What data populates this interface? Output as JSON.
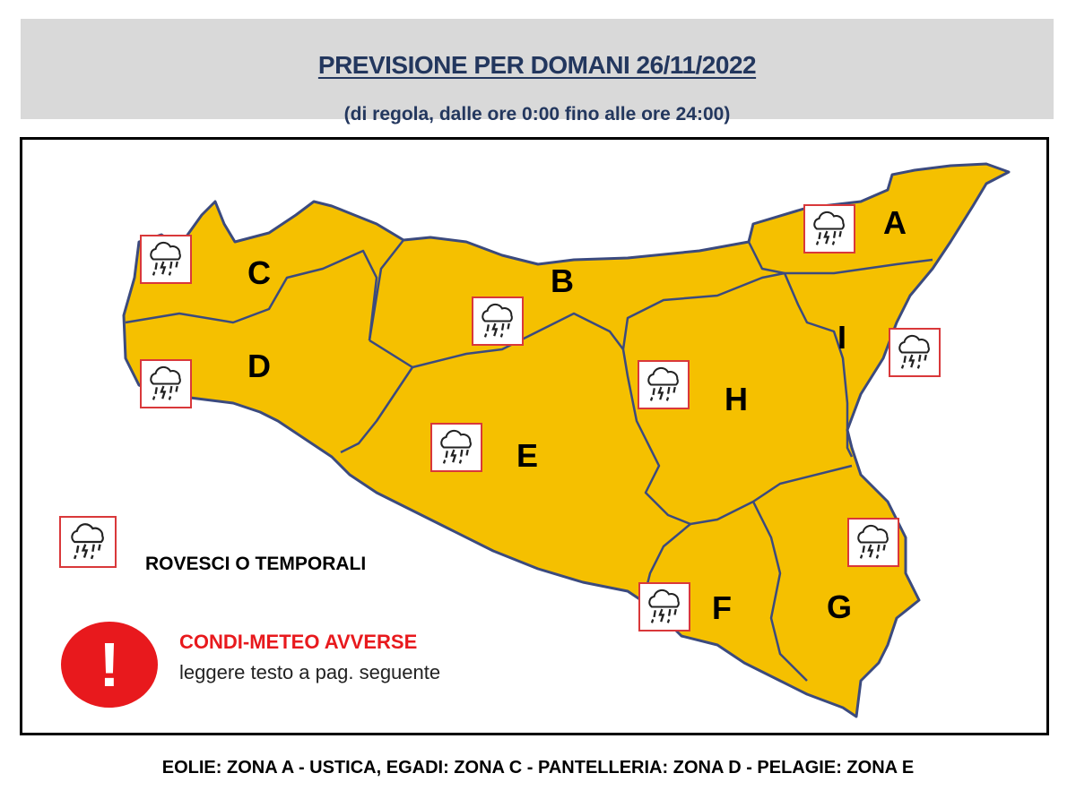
{
  "header": {
    "title": "PREVISIONE PER DOMANI 26/11/2022",
    "subtitle": "(di regola, dalle ore 0:00 fino alle ore 24:00)"
  },
  "map": {
    "fill_color": "#f5c000",
    "border_color": "#3b4a7e",
    "zones": [
      {
        "label": "A",
        "icon": "thunderstorm-icon"
      },
      {
        "label": "B",
        "icon": "thunderstorm-icon"
      },
      {
        "label": "C",
        "icon": "thunderstorm-icon"
      },
      {
        "label": "D",
        "icon": "thunderstorm-icon"
      },
      {
        "label": "E",
        "icon": "thunderstorm-icon"
      },
      {
        "label": "F",
        "icon": "thunderstorm-icon"
      },
      {
        "label": "G",
        "icon": "thunderstorm-icon"
      },
      {
        "label": "H",
        "icon": "thunderstorm-icon"
      },
      {
        "label": "I",
        "icon": "thunderstorm-icon"
      }
    ]
  },
  "legend": {
    "storm_label": "ROVESCI O TEMPORALI",
    "warning_title": "CONDI-METEO AVVERSE",
    "warning_text": "leggere testo a pag. seguente",
    "warning_color": "#e8191d",
    "warning_symbol": "!"
  },
  "footer": {
    "text": "EOLIE: ZONA A - USTICA, EGADI: ZONA C - PANTELLERIA: ZONA D - PELAGIE: ZONA E"
  }
}
